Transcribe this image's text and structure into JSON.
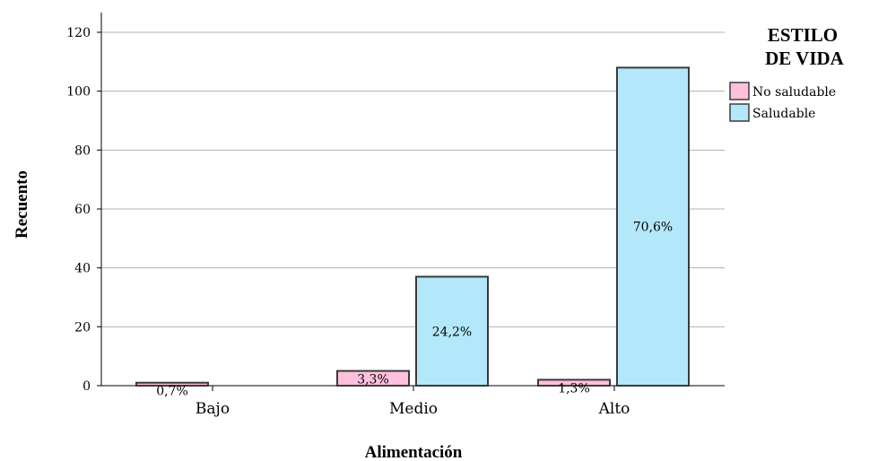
{
  "chart_data": {
    "type": "bar",
    "categories": [
      "Bajo",
      "Medio",
      "Alto"
    ],
    "series": [
      {
        "name": "No saludable",
        "values": [
          1,
          5,
          2
        ],
        "labels": [
          "0,7%",
          "3,3%",
          "1,3%"
        ],
        "color": "#ffc0de"
      },
      {
        "name": "Saludable",
        "values": [
          0,
          37,
          108
        ],
        "labels": [
          "",
          "24,2%",
          "70,6%"
        ],
        "color": "#b3e8fa"
      }
    ],
    "xlabel": "Alimentación",
    "ylabel": "Recuento",
    "ylim": [
      0,
      120
    ],
    "yticks": [
      0,
      20,
      40,
      60,
      80,
      100,
      120
    ],
    "grid": true,
    "legend": {
      "title_line1": "ESTILO",
      "title_line2": "DE VIDA",
      "placement": "right"
    },
    "bar_outline": "#3a3a3a"
  }
}
